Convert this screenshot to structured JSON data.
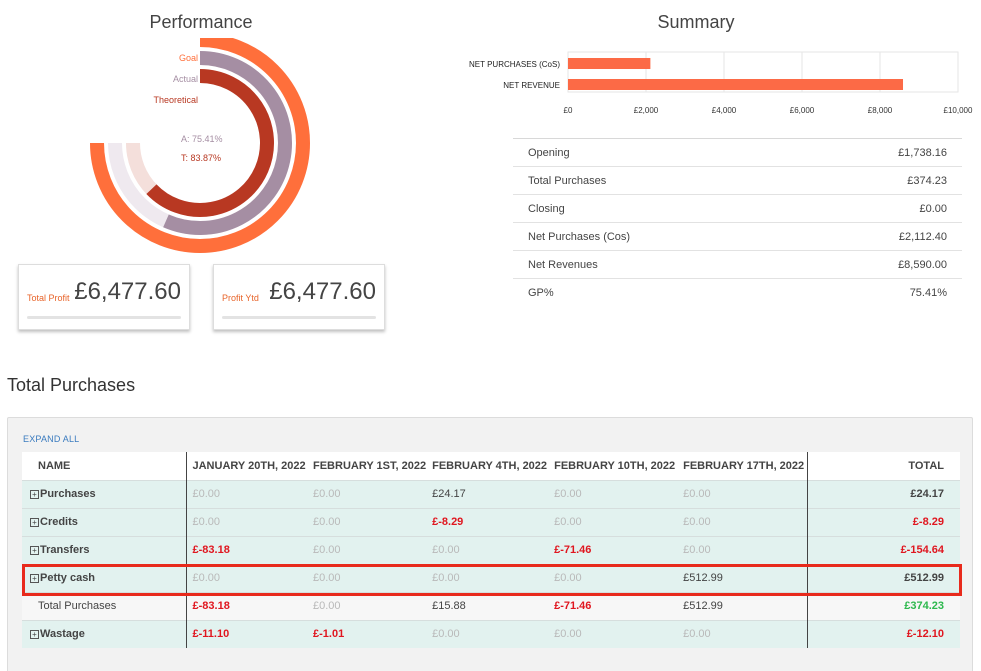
{
  "performance": {
    "title": "Performance",
    "legend": {
      "goal": "Goal",
      "actual": "Actual",
      "theoretical": "Theoretical"
    },
    "actual_text": "A: 75.41%",
    "theoretical_text": "T: 83.87%",
    "colors": {
      "goal": "#ff6f3b",
      "actual": "#a58ea3",
      "theoretical": "#b83822"
    }
  },
  "kpis": [
    {
      "label": "Total Profit",
      "value": "£6,477.60"
    },
    {
      "label": "Profit Ytd",
      "value": "£6,477.60"
    }
  ],
  "summary": {
    "title": "Summary",
    "rows": [
      {
        "label": "Opening",
        "value": "£1,738.16"
      },
      {
        "label": "Total Purchases",
        "value": "£374.23"
      },
      {
        "label": "Closing",
        "value": "£0.00"
      },
      {
        "label": "Net Purchases (Cos)",
        "value": "£2,112.40"
      },
      {
        "label": "Net Revenues",
        "value": "£8,590.00"
      },
      {
        "label": "GP%",
        "value": "75.41%"
      }
    ]
  },
  "chart_data": [
    {
      "type": "pie",
      "title": "Performance",
      "series": [
        {
          "name": "Goal",
          "value": 100
        },
        {
          "name": "Actual",
          "value": 75.41
        },
        {
          "name": "Theoretical",
          "value": 83.87
        }
      ]
    },
    {
      "type": "bar",
      "orientation": "horizontal",
      "categories": [
        "NET PURCHASES (CoS)",
        "NET REVENUE"
      ],
      "values": [
        2112.4,
        8590.0
      ],
      "xlim": [
        0,
        10000
      ],
      "xticks": [
        "£0",
        "£2,000",
        "£4,000",
        "£6,000",
        "£8,000",
        "£10,000"
      ],
      "color": "#fc6a46",
      "grid": true
    }
  ],
  "purchases": {
    "heading": "Total Purchases",
    "expand_all": "EXPAND ALL",
    "columns": [
      "NAME",
      "JANUARY 20TH, 2022",
      "FEBRUARY 1ST, 2022",
      "FEBRUARY 4TH, 2022",
      "FEBRUARY 10TH, 2022",
      "FEBRUARY 17TH, 2022",
      "TOTAL"
    ],
    "rows": [
      {
        "name": "Purchases",
        "kind": "cat",
        "cells": [
          [
            "£0.00",
            "zero"
          ],
          [
            "£0.00",
            "zero"
          ],
          [
            "£24.17",
            "pos"
          ],
          [
            "£0.00",
            "zero"
          ],
          [
            "£0.00",
            "zero"
          ]
        ],
        "total": [
          "£24.17",
          "pos"
        ]
      },
      {
        "name": "Credits",
        "kind": "cat",
        "cells": [
          [
            "£0.00",
            "zero"
          ],
          [
            "£0.00",
            "zero"
          ],
          [
            "£-8.29",
            "neg"
          ],
          [
            "£0.00",
            "zero"
          ],
          [
            "£0.00",
            "zero"
          ]
        ],
        "total": [
          "£-8.29",
          "neg"
        ]
      },
      {
        "name": "Transfers",
        "kind": "cat",
        "cells": [
          [
            "£-83.18",
            "neg"
          ],
          [
            "£0.00",
            "zero"
          ],
          [
            "£0.00",
            "zero"
          ],
          [
            "£-71.46",
            "neg"
          ],
          [
            "£0.00",
            "zero"
          ]
        ],
        "total": [
          "£-154.64",
          "neg"
        ]
      },
      {
        "name": "Petty cash",
        "kind": "cat",
        "cells": [
          [
            "£0.00",
            "zero"
          ],
          [
            "£0.00",
            "zero"
          ],
          [
            "£0.00",
            "zero"
          ],
          [
            "£0.00",
            "zero"
          ],
          [
            "£512.99",
            "pos"
          ]
        ],
        "total": [
          "£512.99",
          "pos"
        ]
      },
      {
        "name": "Total Purchases",
        "kind": "sub",
        "cells": [
          [
            "£-83.18",
            "neg"
          ],
          [
            "£0.00",
            "zero"
          ],
          [
            "£15.88",
            "pos"
          ],
          [
            "£-71.46",
            "neg"
          ],
          [
            "£512.99",
            "pos"
          ]
        ],
        "total": [
          "£374.23",
          "green"
        ]
      },
      {
        "name": "Wastage",
        "kind": "cat",
        "cells": [
          [
            "£-11.10",
            "neg"
          ],
          [
            "£-1.01",
            "neg"
          ],
          [
            "£0.00",
            "zero"
          ],
          [
            "£0.00",
            "zero"
          ],
          [
            "£0.00",
            "zero"
          ]
        ],
        "total": [
          "£-12.10",
          "neg"
        ]
      }
    ],
    "expand_icon": "plus-box-icon"
  }
}
